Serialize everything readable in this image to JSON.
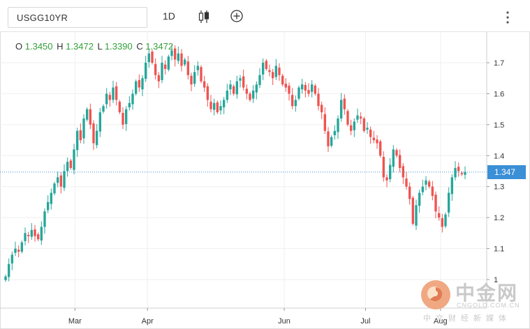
{
  "toolbar": {
    "symbol": "USGG10YR",
    "timeframe": "1D",
    "chart_type_icon": "candlestick-icon",
    "add_icon": "plus-circle-icon",
    "menu_icon": "vertical-dots-icon"
  },
  "ohlc_legend": {
    "o_label": "O",
    "o_value": "1.3450",
    "h_label": "H",
    "h_value": "1.3472",
    "l_label": "L",
    "l_value": "1.3390",
    "c_label": "C",
    "c_value": "1.3472"
  },
  "last_price_label": "1.347",
  "watermark": {
    "title": "中金网",
    "domain": "CNGOLD.COM.CN",
    "subtitle": "中文财经新媒体"
  },
  "colors": {
    "up": "#26a69a",
    "down": "#ef5350",
    "price_tag": "#3a8fd6",
    "legend_value": "#33a03a"
  },
  "chart_data": {
    "type": "candlestick",
    "title": "",
    "xlabel": "",
    "ylabel": "",
    "ylim": [
      1.0,
      1.8
    ],
    "y_ticks": [
      "1",
      "1.1",
      "1.2",
      "1.3",
      "1.4",
      "1.5",
      "1.6",
      "1.7"
    ],
    "x_ticks": [
      "Mar",
      "Apr",
      "Jun",
      "Jul",
      "Aug"
    ],
    "last_price": 1.347,
    "grid": true,
    "closes": [
      1.01,
      1.05,
      1.08,
      1.1,
      1.09,
      1.12,
      1.15,
      1.14,
      1.16,
      1.14,
      1.13,
      1.17,
      1.22,
      1.25,
      1.28,
      1.31,
      1.33,
      1.3,
      1.35,
      1.38,
      1.36,
      1.42,
      1.48,
      1.45,
      1.52,
      1.55,
      1.5,
      1.44,
      1.48,
      1.54,
      1.56,
      1.6,
      1.58,
      1.62,
      1.58,
      1.54,
      1.5,
      1.55,
      1.57,
      1.6,
      1.64,
      1.62,
      1.65,
      1.7,
      1.73,
      1.7,
      1.66,
      1.64,
      1.7,
      1.68,
      1.72,
      1.74,
      1.71,
      1.73,
      1.69,
      1.71,
      1.66,
      1.63,
      1.67,
      1.69,
      1.64,
      1.62,
      1.58,
      1.55,
      1.57,
      1.54,
      1.56,
      1.58,
      1.61,
      1.63,
      1.6,
      1.64,
      1.65,
      1.62,
      1.6,
      1.58,
      1.61,
      1.63,
      1.66,
      1.7,
      1.68,
      1.67,
      1.65,
      1.69,
      1.66,
      1.63,
      1.62,
      1.6,
      1.56,
      1.58,
      1.62,
      1.63,
      1.61,
      1.6,
      1.63,
      1.6,
      1.56,
      1.54,
      1.48,
      1.43,
      1.46,
      1.48,
      1.52,
      1.58,
      1.55,
      1.5,
      1.48,
      1.51,
      1.53,
      1.52,
      1.48,
      1.49,
      1.46,
      1.45,
      1.44,
      1.4,
      1.33,
      1.32,
      1.37,
      1.42,
      1.4,
      1.36,
      1.33,
      1.3,
      1.26,
      1.18,
      1.24,
      1.28,
      1.3,
      1.32,
      1.3,
      1.27,
      1.22,
      1.2,
      1.17,
      1.21,
      1.28,
      1.33,
      1.36,
      1.35,
      1.34,
      1.3472
    ]
  }
}
